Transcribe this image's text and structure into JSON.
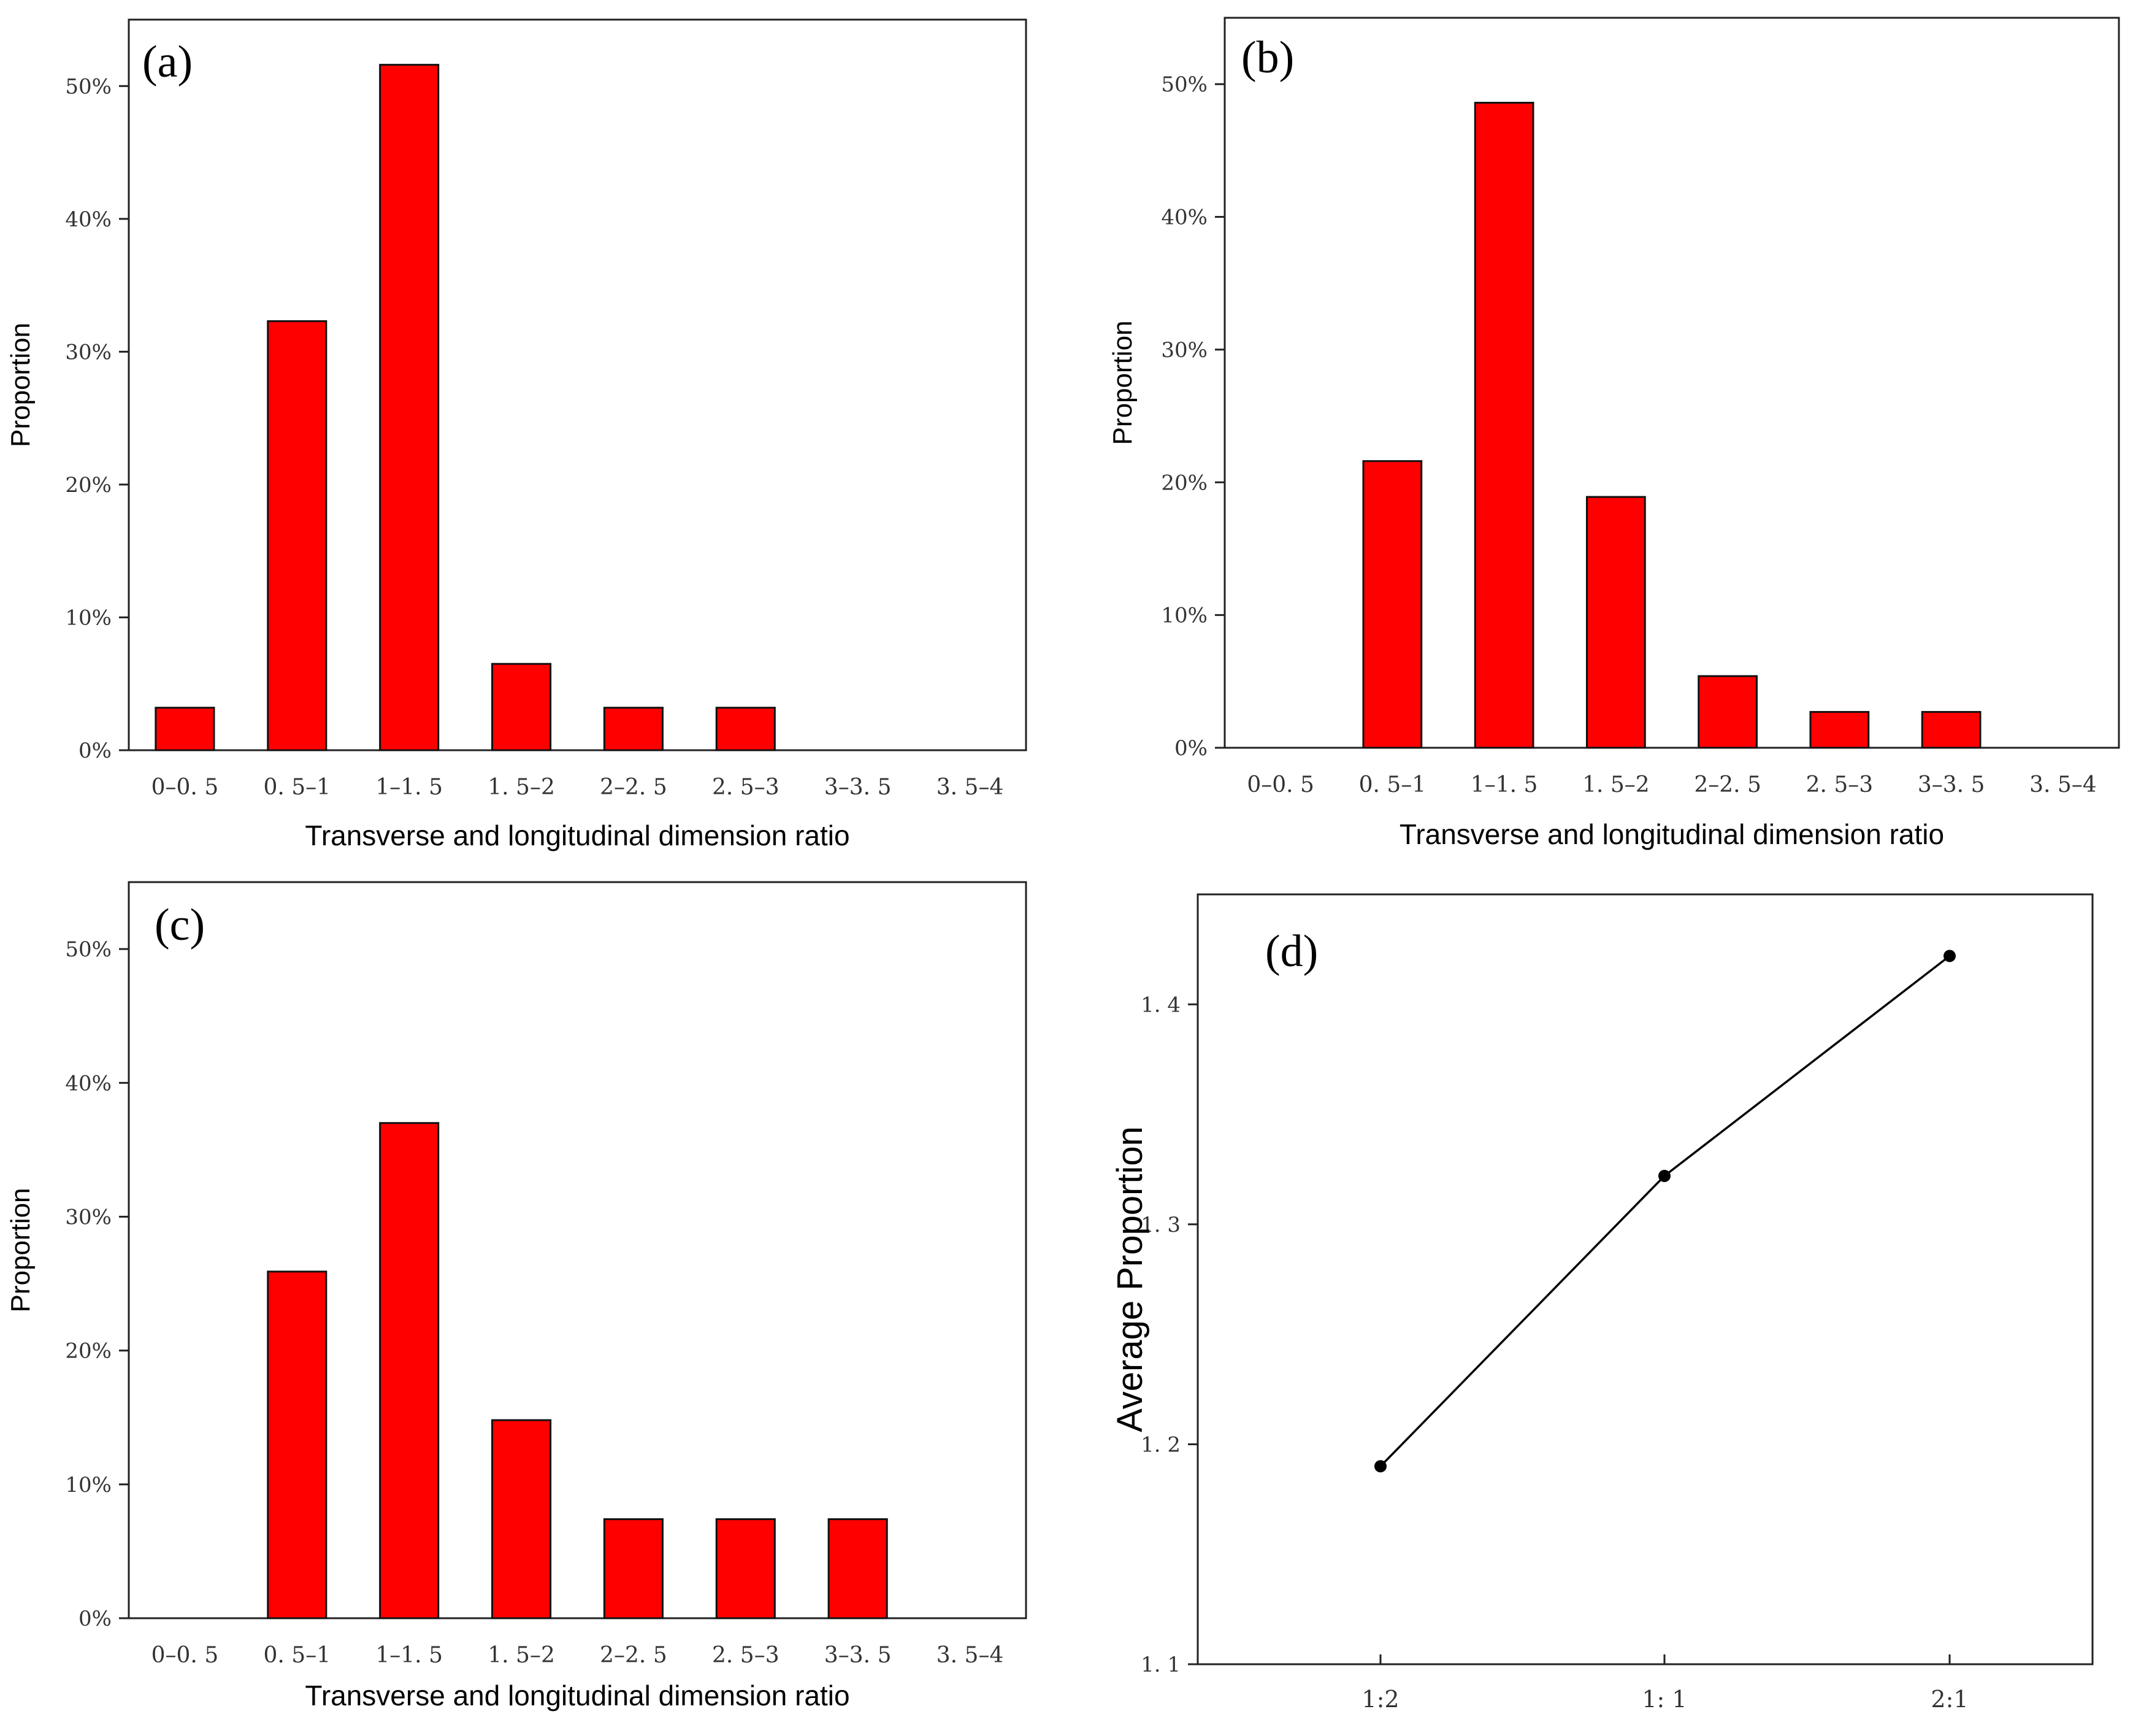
{
  "chart_data": [
    {
      "type": "bar",
      "panel_label": "(a)",
      "categories": [
        "0-0.5",
        "0.5-1",
        "1-1.5",
        "1.5-2",
        "2-2.5",
        "2.5-3",
        "3-3.5",
        "3.5-4"
      ],
      "category_labels": [
        "0–0. 5",
        "0. 5–1",
        "1–1. 5",
        "1. 5–2",
        "2–2. 5",
        "2. 5–3",
        "3–3. 5",
        "3. 5–4"
      ],
      "values": [
        3.2,
        32.3,
        51.6,
        6.5,
        3.2,
        3.2,
        0,
        0
      ],
      "yticks": [
        0,
        10,
        20,
        30,
        40,
        50
      ],
      "ytick_labels": [
        "0%",
        "10%",
        "20%",
        "30%",
        "40%",
        "50%"
      ],
      "ylim": [
        0,
        55
      ],
      "xlabel": "Transverse and longitudinal dimension ratio",
      "ylabel": "Proportion",
      "bar_color": "#ff0000"
    },
    {
      "type": "bar",
      "panel_label": "(b)",
      "categories": [
        "0-0.5",
        "0.5-1",
        "1-1.5",
        "1.5-2",
        "2-2.5",
        "2.5-3",
        "3-3.5",
        "3.5-4"
      ],
      "category_labels": [
        "0–0. 5",
        "0. 5–1",
        "1–1. 5",
        "1. 5–2",
        "2–2. 5",
        "2. 5–3",
        "3–3. 5",
        "3. 5–4"
      ],
      "values": [
        0,
        21.6,
        48.6,
        18.9,
        5.4,
        2.7,
        2.7,
        0
      ],
      "yticks": [
        0,
        10,
        20,
        30,
        40,
        50
      ],
      "ytick_labels": [
        "0%",
        "10%",
        "20%",
        "30%",
        "40%",
        "50%"
      ],
      "ylim": [
        0,
        55
      ],
      "xlabel": "Transverse and longitudinal dimension ratio",
      "ylabel": "Proportion",
      "bar_color": "#ff0000"
    },
    {
      "type": "bar",
      "panel_label": "(c)",
      "categories": [
        "0-0.5",
        "0.5-1",
        "1-1.5",
        "1.5-2",
        "2-2.5",
        "2.5-3",
        "3-3.5",
        "3.5-4"
      ],
      "category_labels": [
        "0–0. 5",
        "0. 5–1",
        "1–1. 5",
        "1. 5–2",
        "2–2. 5",
        "2. 5–3",
        "3–3. 5",
        "3. 5–4"
      ],
      "values": [
        0,
        25.9,
        37.0,
        14.8,
        7.4,
        7.4,
        7.4,
        0
      ],
      "yticks": [
        0,
        10,
        20,
        30,
        40,
        50
      ],
      "ytick_labels": [
        "0%",
        "10%",
        "20%",
        "30%",
        "40%",
        "50%"
      ],
      "ylim": [
        0,
        55
      ],
      "xlabel": "Transverse and longitudinal dimension ratio",
      "ylabel": "Proportion",
      "bar_color": "#ff0000"
    },
    {
      "type": "line",
      "panel_label": "(d)",
      "categories": [
        "1:2",
        "1:1",
        "2:1"
      ],
      "category_labels": [
        "1:2",
        "1: 1",
        "2:1"
      ],
      "values": [
        1.19,
        1.322,
        1.422
      ],
      "yticks": [
        1.1,
        1.2,
        1.3,
        1.4
      ],
      "ytick_labels": [
        "1. 1",
        "1. 2",
        "1. 3",
        "1. 4"
      ],
      "ylim": [
        1.1,
        1.45
      ],
      "xlabel": "",
      "ylabel": "Average Proportion",
      "line_color": "#000000"
    }
  ]
}
